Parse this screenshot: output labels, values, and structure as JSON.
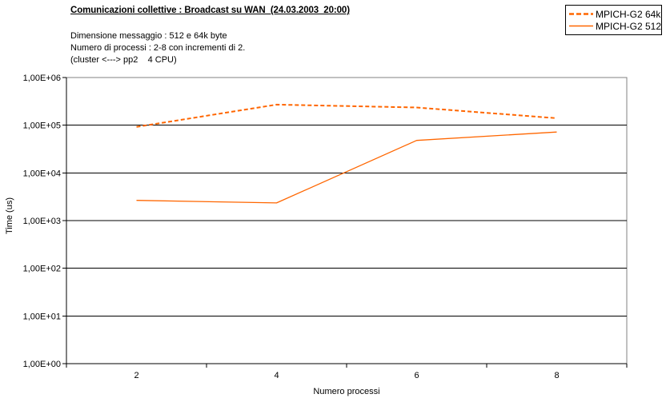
{
  "header": {
    "title": "Comunicazioni collettive : Broadcast su WAN  (24.03.2003  20:00)",
    "subtitle_lines": [
      "Dimensione messaggio : 512 e 64k byte",
      "Numero di processi : 2-8 con incrementi di 2.",
      "(cluster <---> pp2    4 CPU)"
    ]
  },
  "legend": {
    "position": "top-right",
    "items": [
      {
        "label": "MPICH-G2 64k",
        "style": "dashed",
        "color": "#FF6600"
      },
      {
        "label": "MPICH-G2 512",
        "style": "solid",
        "color": "#FF6600"
      }
    ]
  },
  "chart_data": {
    "type": "line",
    "title": "Comunicazioni collettive : Broadcast su WAN  (24.03.2003  20:00)",
    "xlabel": "Numero processi",
    "ylabel": "Time (us)",
    "x": [
      2,
      4,
      6,
      8
    ],
    "x_tick_labels": [
      "2",
      "4",
      "6",
      "8"
    ],
    "y_scale": "log10",
    "ylim": [
      1,
      1000000
    ],
    "y_tick_labels": [
      "1,00E+00",
      "1,00E+01",
      "1,00E+02",
      "1,00E+03",
      "1,00E+04",
      "1,00E+05",
      "1,00E+06"
    ],
    "grid": "horizontal major gridlines, black",
    "plot_border_color": "#808080",
    "gridline_color": "#000000",
    "legend_position": "top-right",
    "series": [
      {
        "name": "MPICH-G2 64k",
        "line_style": "dashed",
        "color": "#FF6600",
        "values": [
          92000,
          270000,
          235000,
          140000
        ]
      },
      {
        "name": "MPICH-G2 512",
        "line_style": "solid",
        "color": "#FF6600",
        "values": [
          2650,
          2350,
          48000,
          72000
        ]
      }
    ]
  }
}
